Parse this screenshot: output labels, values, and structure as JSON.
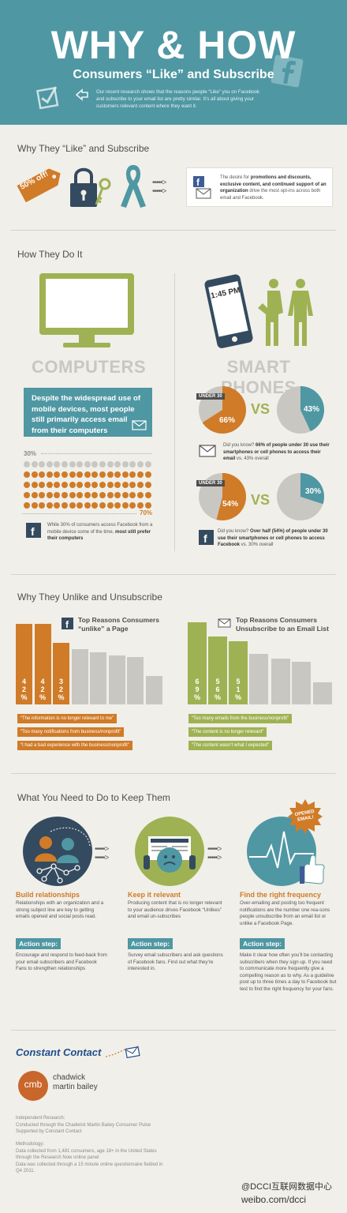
{
  "header": {
    "title": "WHY & HOW",
    "subtitle": "Consumers “Like” and Subscribe",
    "intro": "Our recent research shows that the reasons people “Like” you on Facebook and subscribe to your email list are pretty similar. It’s all about giving your customers relevant content where they want it."
  },
  "section1": {
    "title": "Why They “Like” and Subscribe",
    "tag": "50% off!",
    "text_pre": "The desire for ",
    "text_bold": "promotions and discounts, exclusive content, and continued support of an organization",
    "text_post": " drive the most opt-ins across both email and Facebook."
  },
  "section2": {
    "title": "How They Do It",
    "phone_time": "1:45 PM",
    "computers_label": "COMPUTERS",
    "phones_label": "SMART PHONES",
    "computers_text": "Despite the widespread use of mobile devices, most people still primarily access email from their computers",
    "pct_30": "30%",
    "pct_70": "70%",
    "fb_text": "While 30% of consumers access Facebook from a mobile device some of the time,",
    "fb_text_bold": "most still prefer their computers",
    "under30": "UNDER 30",
    "vs": "VS",
    "email_u30": "66%",
    "email_all": "43%",
    "email_u30_value": 66,
    "email_all_value": 43,
    "email_note_pre": "Did you know? ",
    "email_note_bold": "66% of people under 30 use their smartphones or cell phones to access their email",
    "email_note_post": " vs. 43% overall",
    "fb_u30": "54%",
    "fb_all": "30%",
    "fb_u30_value": 54,
    "fb_all_value": 30,
    "fb_note_pre": "Did you know? ",
    "fb_note_bold": "Over half (54%) of people under 30 use their smartphones or cell phones to access Facebook",
    "fb_note_post": " vs. 30% overall"
  },
  "section3": {
    "title": "Why They Unlike and Unsubscribe",
    "fb_heading": "Top Reasons Consumers “unlike” a Page",
    "email_heading": "Top Reasons Consumers Unsubscribe to an Email List",
    "fb_bar_labels": [
      "42%",
      "42%",
      "32%"
    ],
    "email_bar_labels": [
      "69%",
      "56%",
      "51%"
    ],
    "fb_reasons": [
      "“The information is no longer relevant to me”",
      "“Too many notifications from business/nonprofit”",
      "“I had a bad experience with the business/nonprofit”"
    ],
    "email_reasons": [
      "“Too many emails from the business/nonprofit”",
      "“The content is no longer relevant”",
      "“The content wasn’t what I expected”"
    ]
  },
  "section4": {
    "title": "What You Need to Do to Keep Them",
    "opened_badge": "OPENED EMAIL!",
    "steps": [
      {
        "title": "Build relationships",
        "text": "Relationships with an organization and a strong subject line are key to getting emails opened and social posts read.",
        "action_label": "Action step:",
        "action_text": "Encourage and respond to feed-back from your email subscribers and Facebook Fans to strengthen relationships"
      },
      {
        "title": "Keep it relevant",
        "text": "Producing content that is no longer relevant to your audience drives Facebook “Unlikes” and email un-subscribes",
        "action_label": "Action step:",
        "action_text": "Survey email subscribers and ask questions of Facebook fans. Find out what they’re interested in."
      },
      {
        "title": "Find the right frequency",
        "text": "Over-emailing and posting too frequent notifications are the number one rea-sons people unsubscribe from an email list or unlike a Facebook Page.",
        "action_label": "Action step:",
        "action_text": "Make it clear how often you’ll be contacting subscribers when they sign up. If you need to communicate more frequently give a compelling reason as to why. As a guideline post up to three times a day to Facebook but test to find the right frequency for your fans."
      }
    ]
  },
  "footer": {
    "brand": "Constant Contact",
    "cmb_initials": "cmb",
    "cmb_line1": "chadwick",
    "cmb_line2": "martin bailey",
    "research": [
      "Independent Research:",
      "Conducted through the Chadwick Martin Bailey Consumer Pulse",
      "Supported by Constant Contact"
    ],
    "methodology": [
      "Methodology:",
      "Data collected from 1,481 consumers, age 18+ in the United States through the Research Now online panel",
      "Data was collected through a 15 minute online questionnaire fielded in Q4 2011."
    ],
    "watermark1": "@DCCI互联网数据中心",
    "watermark2": "weibo.com/dcci"
  },
  "colors": {
    "teal": "#4f97a3",
    "orange": "#d07b28",
    "green": "#9fb253",
    "grey": "#c9c7c2"
  }
}
